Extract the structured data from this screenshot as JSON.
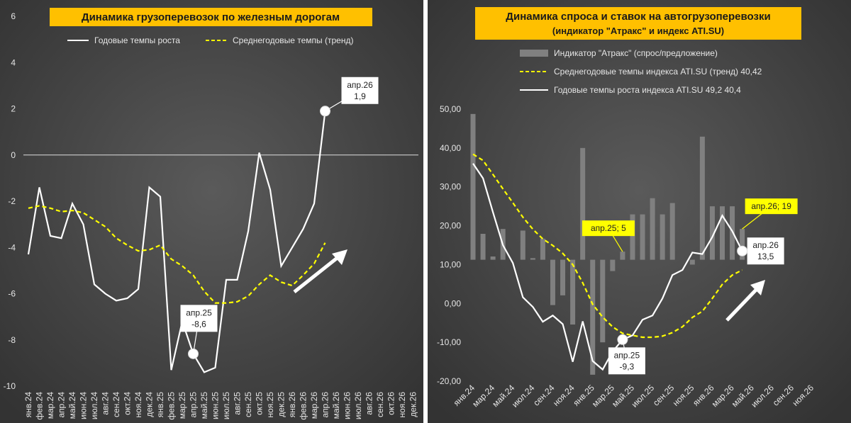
{
  "chart_data": [
    {
      "type": "line",
      "title": "Динамика грузоперевозок по железным дорогам",
      "categories": [
        "янв.24",
        "фев.24",
        "мар.24",
        "апр.24",
        "май.24",
        "июн.24",
        "июл.24",
        "авг.24",
        "сен.24",
        "окт.24",
        "ноя.24",
        "дек.24",
        "янв.25",
        "фев.25",
        "мар.25",
        "апр.25",
        "май.25",
        "июн.25",
        "июл.25",
        "авг.25",
        "сен.25",
        "окт.25",
        "ноя.25",
        "дек.25",
        "янв.26",
        "фев.26",
        "мар.26",
        "апр.26",
        "май.26",
        "июн.26",
        "июл.26",
        "авг.26",
        "сен.26",
        "окт.26",
        "ноя.26",
        "дек.26"
      ],
      "series": [
        {
          "name": "Годовые темпы роста",
          "color": "#ffffff",
          "dash": false,
          "values": [
            -4.3,
            -1.4,
            -3.5,
            -3.6,
            -2.1,
            -3.0,
            -5.6,
            -6.0,
            -6.3,
            -6.2,
            -5.8,
            -1.4,
            -1.8,
            -9.3,
            -7.2,
            -8.6,
            -9.4,
            -9.2,
            -5.4,
            -5.4,
            -3.3,
            0.1,
            -1.5,
            -4.8,
            -4.0,
            -3.2,
            -2.1,
            1.9,
            null,
            null,
            null,
            null,
            null,
            null,
            null,
            null
          ],
          "value_labels": [
            null,
            null,
            null,
            null,
            null,
            null,
            null,
            null,
            null,
            null,
            null,
            null,
            null,
            null,
            null,
            "апр.25\n-8,6",
            null,
            null,
            null,
            null,
            null,
            null,
            null,
            null,
            null,
            null,
            null,
            "апр.26\n1,9",
            null,
            null,
            null,
            null,
            null,
            null,
            null,
            null
          ]
        },
        {
          "name": "Среднегодовые темпы (тренд)",
          "color": "#ffff00",
          "dash": true,
          "values": [
            -2.3,
            -2.2,
            -2.3,
            -2.45,
            -2.4,
            -2.5,
            -2.8,
            -3.1,
            -3.6,
            -3.9,
            -4.15,
            -4.1,
            -3.9,
            -4.5,
            -4.8,
            -5.2,
            -5.9,
            -6.4,
            -6.4,
            -6.35,
            -6.1,
            -5.6,
            -5.2,
            -5.5,
            -5.65,
            -5.2,
            -4.7,
            -3.8,
            null,
            null,
            null,
            null,
            null,
            null,
            null,
            null
          ]
        }
      ],
      "ylim": [
        -10,
        6
      ],
      "yticks": [
        -10,
        -8,
        -6,
        -4,
        -2,
        0,
        2,
        4,
        6
      ],
      "grid": false,
      "zero_line": true
    },
    {
      "type": "bar_line",
      "title": "Динамика спроса и ставок на автогрузоперевозки",
      "subtitle": "(индикатор \"Атракс\" и индекс ATI.SU)",
      "categories": [
        "янв.24",
        null,
        "мар.24",
        null,
        "май.24",
        null,
        "июл.24",
        null,
        "сен.24",
        null,
        "ноя.24",
        null,
        "янв.25",
        null,
        "мар.25",
        null,
        "май.25",
        null,
        "июл.25",
        null,
        "сен.25",
        null,
        "ноя.25",
        null,
        "янв.26",
        null,
        "мар.26",
        null,
        "май.26",
        null,
        "июл.26",
        null,
        "сен.26",
        null,
        "ноя.26",
        null
      ],
      "series": [
        {
          "name": "Индикатор \"Атракс\" (спрос/предложение)",
          "kind": "bar",
          "axis": "y2",
          "color": "#808080",
          "values": [
            90,
            16,
            2,
            19,
            0,
            18,
            1,
            13,
            -28,
            -22,
            -40,
            69,
            -71,
            -51,
            -7,
            5,
            28,
            28,
            38,
            28,
            35,
            0,
            -3,
            76,
            33,
            33,
            33,
            19,
            null,
            null,
            null,
            null,
            null,
            null,
            null,
            null
          ],
          "value_labels": [
            null,
            null,
            null,
            null,
            null,
            null,
            null,
            null,
            null,
            null,
            null,
            null,
            null,
            null,
            null,
            "апр.25; 5",
            null,
            null,
            null,
            null,
            null,
            null,
            null,
            null,
            null,
            null,
            null,
            "апр.26; 19",
            null,
            null,
            null,
            null,
            null,
            null,
            null,
            null
          ]
        },
        {
          "name": "Среднегодовые темпы индекса ATI.SU (тренд) 40,42",
          "kind": "line",
          "color": "#ffff00",
          "dash": true,
          "values": [
            38.4,
            36.8,
            33.2,
            29.5,
            25.9,
            22.2,
            19.1,
            16.6,
            14.9,
            12.9,
            10.0,
            5.3,
            -0.2,
            -3.5,
            -6.0,
            -7.7,
            -8.2,
            -8.7,
            -8.7,
            -8.4,
            -7.5,
            -6.0,
            -3.6,
            -2.0,
            1.3,
            4.9,
            7.3,
            8.6,
            null,
            null,
            null,
            null,
            null,
            null,
            null,
            null
          ]
        },
        {
          "name": "Годовые темпы роста индекса ATI.SU 49,2 40,4",
          "kind": "line",
          "color": "#ffffff",
          "dash": false,
          "values": [
            36,
            32.2,
            23.5,
            15,
            10.4,
            1.6,
            -0.9,
            -4.7,
            -3.1,
            -5.3,
            -15,
            -4.6,
            -14.8,
            -17,
            -12.4,
            -9.3,
            -8.2,
            -4.2,
            -3.1,
            1.3,
            7.3,
            8.6,
            13.1,
            12.7,
            17.1,
            22.6,
            18.6,
            13.5,
            null,
            null,
            null,
            null,
            null,
            null,
            null,
            null
          ],
          "value_labels": [
            null,
            null,
            null,
            null,
            null,
            null,
            null,
            null,
            null,
            null,
            null,
            null,
            null,
            null,
            null,
            "апр.25\n-9,3",
            null,
            null,
            null,
            null,
            null,
            null,
            null,
            null,
            null,
            null,
            null,
            "апр.26\n13,5",
            null,
            null,
            null,
            null,
            null,
            null,
            null,
            null
          ]
        }
      ],
      "ylim": [
        -20,
        50
      ],
      "yticks": [
        {
          "value": -20,
          "label": "-20,00"
        },
        {
          "value": -10,
          "label": "-10,00"
        },
        {
          "value": 0,
          "label": "0,00"
        },
        {
          "value": 10,
          "label": "10,00"
        },
        {
          "value": 20,
          "label": "20,00"
        },
        {
          "value": 30,
          "label": "30,00"
        },
        {
          "value": 40,
          "label": "40,00"
        },
        {
          "value": 50,
          "label": "50,00"
        }
      ],
      "y2lim": [
        -75,
        93
      ],
      "grid": false,
      "zero_line": false
    }
  ]
}
